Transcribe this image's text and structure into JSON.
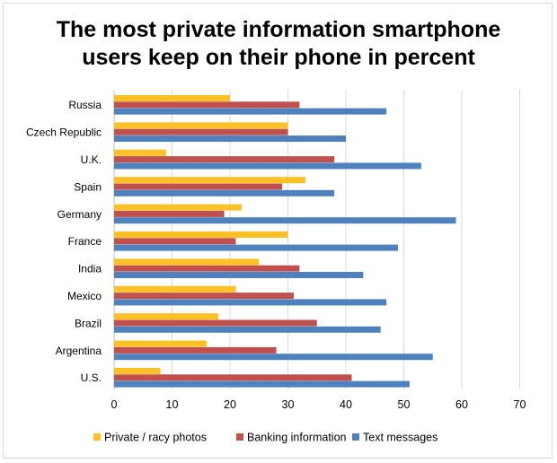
{
  "chart_data": {
    "type": "bar",
    "orientation": "horizontal",
    "title_lines": [
      "The most private information smartphone",
      "users keep on their phone in percent"
    ],
    "categories": [
      "Russia",
      "Czech Republic",
      "U.K.",
      "Spain",
      "Germany",
      "France",
      "India",
      "Mexico",
      "Brazil",
      "Argentina",
      "U.S."
    ],
    "series": [
      {
        "name": "Private / racy photos",
        "color": "#fcc125",
        "values": [
          20,
          30,
          9,
          33,
          22,
          30,
          25,
          21,
          18,
          16,
          8
        ]
      },
      {
        "name": "Banking information",
        "color": "#c0504d",
        "values": [
          32,
          30,
          38,
          29,
          19,
          21,
          32,
          31,
          35,
          28,
          41
        ]
      },
      {
        "name": "Text messages",
        "color": "#4f81bd",
        "values": [
          47,
          40,
          53,
          38,
          59,
          49,
          43,
          47,
          46,
          55,
          51
        ]
      }
    ],
    "xlim": [
      0,
      70
    ],
    "xticks": [
      "0",
      "10",
      "20",
      "30",
      "40",
      "50",
      "60",
      "70"
    ],
    "grid": "vertical",
    "legend_position": "bottom"
  }
}
